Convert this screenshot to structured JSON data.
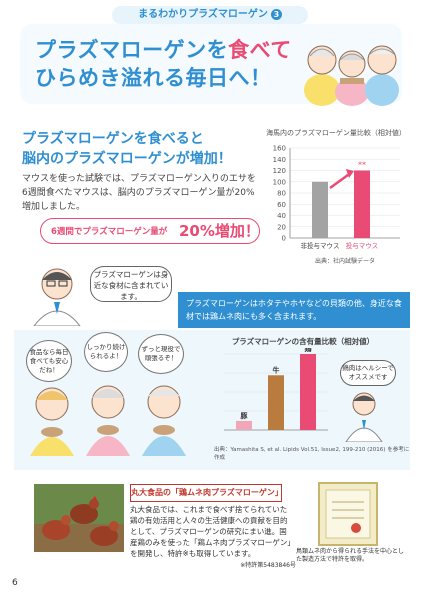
{
  "header": {
    "series_label": "まるわかりプラズマローゲン",
    "series_number": "3"
  },
  "hero": {
    "line1_a": "プラズマローゲンを",
    "line1_b": "食べて",
    "line2": "ひらめき溢れる毎日へ！"
  },
  "section1": {
    "title_line1": "プラズマローゲンを食べると",
    "title_line2": "脳内のプラズマローゲンが増加！",
    "body": "マウスを使った試験では、プラズマローゲン入りのエサを6週間食べたマウスは、脳内のプラズマローゲン量が20%増加しました。",
    "pill_prefix": "6週間でプラズマローゲン量が",
    "pill_value": "20%増加！"
  },
  "chart_data": [
    {
      "type": "bar",
      "title": "海馬内のプラズマローゲン量比較（相対値）",
      "categories": [
        "非投与マウス",
        "投与マウス"
      ],
      "values": [
        100,
        120
      ],
      "ylim": [
        0,
        160
      ],
      "yticks": [
        "160",
        "140",
        "120",
        "100",
        "80",
        "60",
        "40",
        "20",
        "0"
      ],
      "annotation": "**",
      "source": "出典：社内試験データ",
      "colors": [
        "#a3a3a3",
        "#e94b74"
      ]
    },
    {
      "type": "bar",
      "title": "プラズマローゲンの含有量比較（相対値）",
      "categories": [
        "豚",
        "牛",
        "鶏"
      ],
      "values": [
        12,
        72,
        100
      ],
      "ylim": [
        0,
        100
      ],
      "colors": [
        "#f0a8b8",
        "#b97c3e",
        "#e94b74"
      ]
    }
  ],
  "doctor": {
    "speech": "プラズマローゲンは身近な食材に含まれています。"
  },
  "banner": {
    "text": "プラズマローゲンはホタテやホヤなどの貝類の他、身近な食材では鶏ムネ肉にも多く含まれます。"
  },
  "family": {
    "bubble1": "食品なら毎日食べても安心だね！",
    "bubble2": "しっかり続けられるよ！",
    "bubble3": "ずっと現役で頑張るぞ！"
  },
  "chart2_bubble": "鶏肉はヘルシーでオススメです",
  "citation": "出典：Yamashita S, et al. Lipids Vol.51, Issue2, 199-210 (2016) を参考に作成",
  "company": {
    "heading": "丸大食品の「鶏ムネ肉プラズマローゲン」",
    "body": "丸大食品では、これまで食べず捨てられていた鶏の有効活用と人々の生活健康への貢献を目的として、プラズマローゲンの研究にまい進。国産鶏のみを使った「鶏ムネ肉プラズマローゲン」を開発し、特許※も取得しています。",
    "patent_note": "※特許第5483846号",
    "certificate_caption": "鳥類ムネ肉から得られる手法を中心とした製造方法で特許を取得。"
  },
  "page_number": "6"
}
